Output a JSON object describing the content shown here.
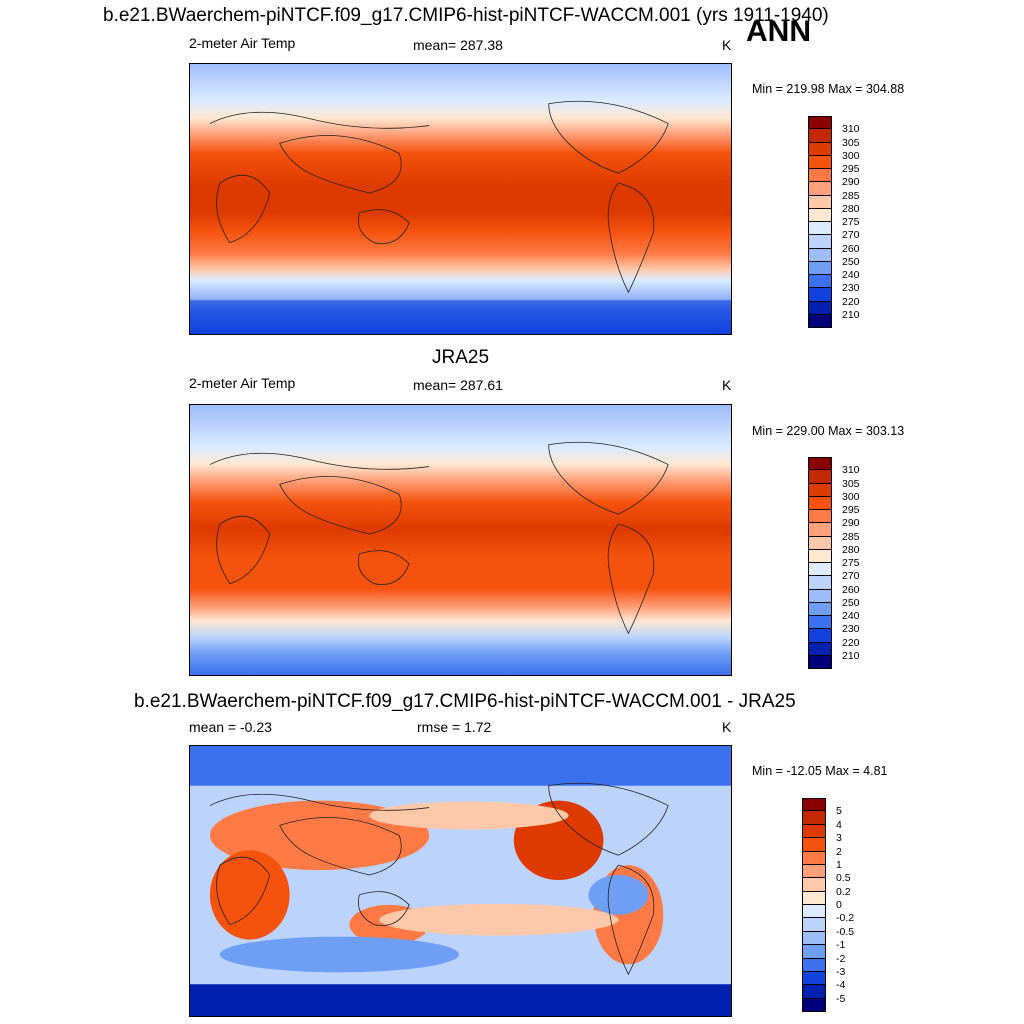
{
  "header": {
    "title": "b.e21.BWaerchem-piNTCF.f09_g17.CMIP6-hist-piNTCF-WACCM.001 (yrs 1911-1940)",
    "season": "ANN"
  },
  "panels": [
    {
      "title": "",
      "variable": "2-meter Air Temp",
      "stat": "mean= 287.38",
      "unit": "K",
      "minmax": "Min = 219.98 Max = 304.88",
      "kind": "abs"
    },
    {
      "title": "JRA25",
      "variable": "2-meter Air Temp",
      "stat": "mean= 287.61",
      "unit": "K",
      "minmax": "Min = 229.00 Max = 303.13",
      "kind": "abs"
    },
    {
      "title": "b.e21.BWaerchem-piNTCF.f09_g17.CMIP6-hist-piNTCF-WACCM.001 - JRA25",
      "variable": "mean =  -0.23",
      "stat": "rmse =   1.72",
      "unit": "K",
      "minmax": "Min = -12.05 Max =   4.81",
      "kind": "diff"
    }
  ],
  "colorbars": {
    "abs": {
      "labels": [
        "310",
        "305",
        "300",
        "295",
        "290",
        "285",
        "280",
        "275",
        "270",
        "260",
        "250",
        "240",
        "230",
        "220",
        "210"
      ],
      "colors": [
        "#8a0000",
        "#c42800",
        "#de3a00",
        "#f5520e",
        "#ff7a45",
        "#ffa07a",
        "#ffc8a8",
        "#ffe8d2",
        "#dcebff",
        "#bcd3fc",
        "#9dbdfa",
        "#6f9ff5",
        "#3b70ee",
        "#1242de",
        "#0020b0",
        "#00007a"
      ]
    },
    "diff": {
      "labels": [
        "5",
        "4",
        "3",
        "2",
        "1",
        "0.5",
        "0.2",
        "0",
        "-0.2",
        "-0.5",
        "-1",
        "-2",
        "-3",
        "-4",
        "-5"
      ],
      "colors": [
        "#8a0000",
        "#c42800",
        "#de3a00",
        "#f5520e",
        "#ff7a45",
        "#ffa07a",
        "#ffc8a8",
        "#ffe8d2",
        "#dcebff",
        "#bcd3fc",
        "#9dbdfa",
        "#6f9ff5",
        "#3b70ee",
        "#1242de",
        "#0020b0",
        "#00007a"
      ]
    }
  }
}
